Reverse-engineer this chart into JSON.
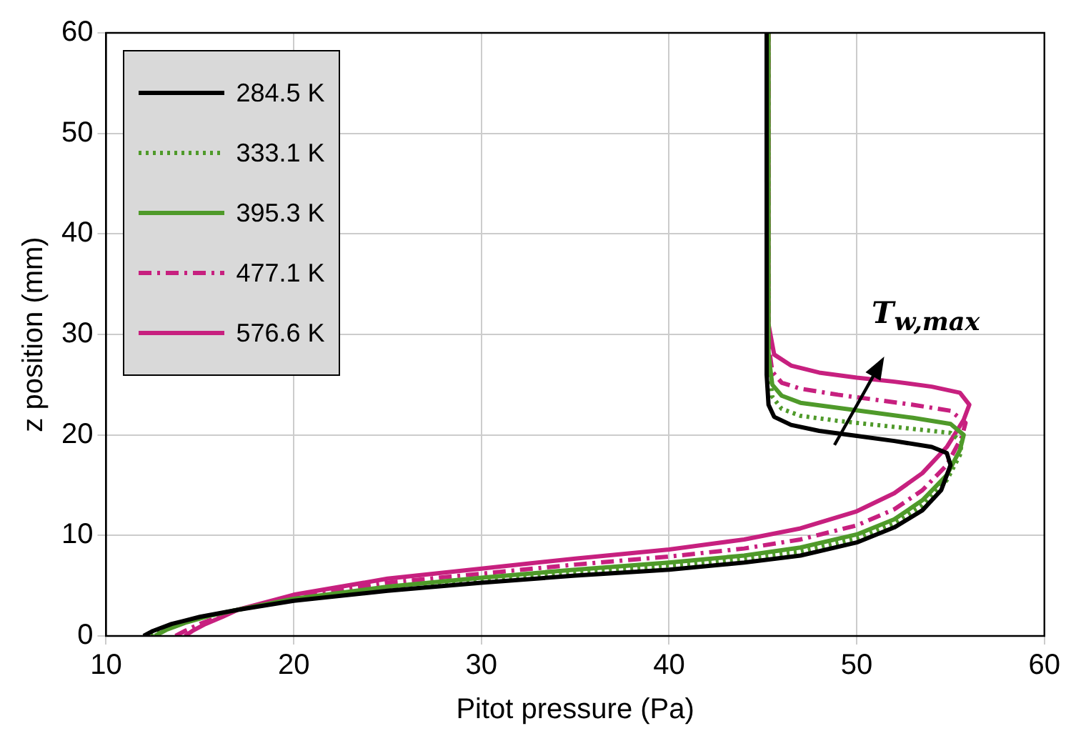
{
  "chart_data": {
    "type": "line",
    "xlabel": "Pitot pressure (Pa)",
    "ylabel": "z position (mm)",
    "xlim": [
      10,
      60
    ],
    "xticks": [
      10,
      20,
      30,
      40,
      50,
      60
    ],
    "ylim": [
      0,
      60
    ],
    "yticks": [
      0,
      10,
      20,
      30,
      40,
      50,
      60
    ],
    "grid": true,
    "legend": "top left",
    "marker": "none",
    "annotations": [
      "T$_{w,max}$"
    ],
    "series": [
      {
        "name": "284.5 K",
        "color": "#000000",
        "line_style": "solid",
        "x": [
          12.0,
          12.5,
          13.5,
          15,
          17,
          20,
          25,
          30,
          35,
          40,
          44,
          47,
          50,
          52,
          53.5,
          54.5,
          55.0,
          54.8,
          54,
          52,
          50,
          48,
          46.5,
          45.6,
          45.3,
          45.2,
          45.2
        ],
        "values": [
          0,
          0.5,
          1.2,
          1.9,
          2.6,
          3.5,
          4.5,
          5.3,
          6.0,
          6.6,
          7.3,
          8.0,
          9.3,
          10.8,
          12.5,
          14.5,
          17,
          18.2,
          18.8,
          19.4,
          19.9,
          20.4,
          21.0,
          21.8,
          23,
          26,
          60
        ]
      },
      {
        "name": "333.1 K",
        "color": "#4f9a2a",
        "line_style": "dotted",
        "x": [
          12.4,
          13,
          14,
          15.5,
          17,
          20,
          25,
          30,
          35,
          40,
          44,
          47,
          50,
          52,
          53.5,
          54.8,
          55.5,
          55.6,
          55,
          53,
          51,
          49,
          47,
          46,
          45.5,
          45.3,
          45.3
        ],
        "values": [
          0,
          0.6,
          1.3,
          2.0,
          2.6,
          3.6,
          4.7,
          5.6,
          6.3,
          7.0,
          7.7,
          8.4,
          9.7,
          11.2,
          13,
          15.5,
          18,
          19.3,
          20.2,
          20.6,
          21.0,
          21.4,
          21.9,
          22.6,
          23.8,
          27,
          60
        ]
      },
      {
        "name": "395.3 K",
        "color": "#4f9a2a",
        "line_style": "solid",
        "x": [
          12.6,
          13.2,
          14.2,
          15.5,
          17,
          20,
          25,
          30,
          35,
          40,
          44,
          47,
          50,
          52,
          53.5,
          54.8,
          55.5,
          55.7,
          55,
          53,
          51,
          49,
          47,
          46,
          45.5,
          45.3,
          45.3
        ],
        "values": [
          0,
          0.6,
          1.3,
          2.0,
          2.6,
          3.7,
          4.9,
          5.8,
          6.6,
          7.3,
          8.0,
          8.8,
          10.1,
          11.6,
          13.5,
          16,
          18.5,
          20,
          21.1,
          21.7,
          22.2,
          22.7,
          23.2,
          23.9,
          25,
          28,
          60
        ]
      },
      {
        "name": "477.1 K",
        "color": "#c7207f",
        "line_style": "dashed",
        "x": [
          13.7,
          14.2,
          15,
          16,
          17,
          20,
          25,
          30,
          35,
          40,
          44,
          47,
          50,
          52,
          53.5,
          54.8,
          55.6,
          55.8,
          55,
          53,
          51,
          49,
          47,
          46,
          45.5,
          45.3,
          45.3
        ],
        "values": [
          0,
          0.5,
          1.2,
          1.9,
          2.6,
          3.9,
          5.3,
          6.2,
          7.1,
          7.9,
          8.7,
          9.6,
          11,
          12.6,
          14.5,
          17,
          19.8,
          21.2,
          22.4,
          23.0,
          23.5,
          24,
          24.6,
          25.2,
          26.3,
          29,
          60
        ]
      },
      {
        "name": "576.6 K",
        "color": "#c7207f",
        "line_style": "solid",
        "x": [
          14.2,
          14.6,
          15.3,
          16.2,
          17,
          20,
          25,
          30,
          35,
          40,
          44,
          47,
          50,
          52,
          53.5,
          54.8,
          55.7,
          56.0,
          55.5,
          54,
          52,
          50,
          48,
          46.5,
          45.6,
          45.3,
          45.3
        ],
        "values": [
          0,
          0.5,
          1.2,
          1.9,
          2.6,
          4.1,
          5.7,
          6.7,
          7.7,
          8.6,
          9.6,
          10.7,
          12.4,
          14.2,
          16.2,
          18.8,
          21.5,
          23,
          24.2,
          24.8,
          25.3,
          25.7,
          26.2,
          26.9,
          28,
          31,
          60
        ]
      }
    ]
  }
}
